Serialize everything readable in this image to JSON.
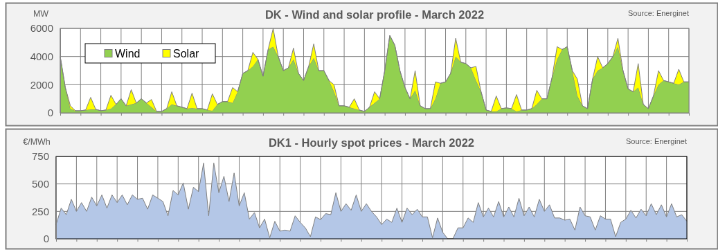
{
  "chart_data": [
    {
      "type": "area",
      "title": "DK - Wind and solar profile - March 2022",
      "ylabel": "MW",
      "annotations": [
        "Source: Energinet"
      ],
      "stacked": true,
      "grid": true,
      "legend": "top left",
      "ylim": [
        0,
        6000
      ],
      "yticks": [
        0,
        2000,
        4000,
        6000
      ],
      "categories": [
        null,
        null,
        null,
        null,
        null,
        null,
        null,
        null,
        null,
        null,
        null,
        null,
        null,
        null,
        null,
        null,
        null,
        null,
        null,
        null,
        null,
        null,
        null,
        null,
        null,
        null,
        null,
        null,
        null,
        null,
        null,
        null,
        null,
        null,
        null,
        null,
        null,
        null,
        null,
        null,
        null,
        null,
        null,
        null,
        null,
        null,
        null,
        null,
        null,
        null,
        null,
        null,
        null,
        null,
        null,
        null,
        null,
        null,
        null,
        null,
        null,
        null,
        null,
        null,
        null,
        null,
        null,
        null,
        null,
        null,
        null,
        null,
        null,
        null,
        null,
        null,
        null,
        null,
        null,
        null,
        null,
        null,
        null,
        null,
        null,
        null,
        null,
        null,
        null,
        null,
        null,
        null,
        null,
        null,
        null,
        null,
        null,
        null,
        null,
        null,
        null,
        null,
        null,
        null,
        null,
        null,
        null,
        null,
        null,
        null,
        null,
        null,
        null,
        null,
        null,
        null,
        null,
        null,
        null,
        null,
        null,
        null,
        null,
        null,
        null
      ],
      "series": [
        {
          "name": "Wind",
          "color": "#92d050",
          "values": [
            4000,
            1800,
            300,
            150,
            150,
            200,
            250,
            250,
            150,
            200,
            300,
            600,
            1000,
            500,
            600,
            700,
            1000,
            700,
            400,
            100,
            100,
            300,
            600,
            500,
            400,
            300,
            350,
            300,
            300,
            200,
            150,
            600,
            800,
            800,
            700,
            1500,
            2800,
            3000,
            3300,
            3800,
            2600,
            4500,
            4700,
            4000,
            3000,
            3200,
            3800,
            2800,
            2300,
            3300,
            3900,
            3000,
            3000,
            2300,
            1500,
            500,
            500,
            400,
            300,
            200,
            100,
            400,
            700,
            1000,
            3000,
            5500,
            4800,
            3000,
            1800,
            1000,
            1600,
            500,
            300,
            300,
            1000,
            2100,
            2200,
            2800,
            4000,
            3600,
            3500,
            3200,
            2300,
            1500,
            200,
            100,
            100,
            300,
            350,
            300,
            100,
            200,
            200,
            300,
            600,
            1000,
            1000,
            2500,
            3800,
            4500,
            4700,
            3000,
            1200,
            500,
            300,
            2400,
            3000,
            3200,
            3500,
            4000,
            4700,
            3000,
            1700,
            1500,
            1800,
            600,
            300,
            1200,
            2000,
            2300,
            2200,
            2100,
            2000,
            2200,
            2200
          ]
        },
        {
          "name": "Solar",
          "color": "#ffff00",
          "values": [
            0,
            0,
            200,
            0,
            0,
            0,
            850,
            0,
            0,
            0,
            950,
            0,
            0,
            0,
            1050,
            0,
            0,
            0,
            550,
            0,
            0,
            0,
            900,
            0,
            0,
            0,
            1050,
            0,
            0,
            0,
            1200,
            0,
            0,
            0,
            1100,
            0,
            0,
            0,
            1000,
            0,
            0,
            0,
            1300,
            0,
            0,
            0,
            800,
            0,
            0,
            0,
            1000,
            0,
            0,
            0,
            500,
            0,
            0,
            0,
            700,
            0,
            0,
            0,
            800,
            0,
            0,
            0,
            0,
            0,
            0,
            0,
            1400,
            0,
            0,
            0,
            1200,
            0,
            0,
            0,
            1300,
            0,
            0,
            0,
            1000,
            0,
            0,
            0,
            1100,
            0,
            0,
            0,
            1200,
            0,
            0,
            0,
            1000,
            0,
            0,
            0,
            900,
            0,
            0,
            0,
            1200,
            0,
            0,
            0,
            1000,
            0,
            0,
            0,
            600,
            0,
            0,
            0,
            1700,
            0,
            0,
            0,
            1000,
            0,
            0,
            0,
            1100,
            0,
            0
          ]
        }
      ]
    },
    {
      "type": "area",
      "title": "DK1 - Hourly spot prices - March 2022",
      "ylabel": "€/MWh",
      "annotations": [
        "Source: Energinet"
      ],
      "grid": true,
      "ylim": [
        0,
        750
      ],
      "yticks": [
        0,
        250,
        500,
        750
      ],
      "categories": [
        null,
        null,
        null,
        null,
        null,
        null,
        null,
        null,
        null,
        null,
        null,
        null,
        null,
        null,
        null,
        null,
        null,
        null,
        null,
        null,
        null,
        null,
        null,
        null,
        null,
        null,
        null,
        null,
        null,
        null,
        null,
        null,
        null,
        null,
        null,
        null,
        null,
        null,
        null,
        null,
        null,
        null,
        null,
        null,
        null,
        null,
        null,
        null,
        null,
        null,
        null,
        null,
        null,
        null,
        null,
        null,
        null,
        null,
        null,
        null,
        null,
        null,
        null,
        null,
        null,
        null,
        null,
        null,
        null,
        null,
        null,
        null,
        null,
        null,
        null,
        null,
        null,
        null,
        null,
        null,
        null,
        null,
        null,
        null,
        null,
        null,
        null,
        null,
        null,
        null,
        null,
        null,
        null,
        null,
        null,
        null,
        null,
        null,
        null,
        null,
        null,
        null,
        null,
        null,
        null,
        null,
        null,
        null,
        null,
        null,
        null,
        null,
        null,
        null,
        null,
        null,
        null,
        null,
        null,
        null,
        null,
        null,
        null,
        null,
        null
      ],
      "series": [
        {
          "color": "#b4c7e7",
          "values": [
            130,
            280,
            220,
            360,
            250,
            330,
            250,
            380,
            300,
            400,
            280,
            400,
            330,
            400,
            310,
            400,
            360,
            370,
            270,
            400,
            370,
            340,
            210,
            440,
            400,
            510,
            270,
            470,
            430,
            690,
            210,
            690,
            420,
            570,
            340,
            600,
            300,
            420,
            180,
            240,
            100,
            180,
            10,
            160,
            70,
            80,
            70,
            210,
            150,
            100,
            20,
            200,
            175,
            230,
            220,
            420,
            250,
            320,
            260,
            400,
            250,
            320,
            250,
            200,
            130,
            180,
            150,
            280,
            150,
            280,
            220,
            270,
            200,
            200,
            10,
            190,
            60,
            0,
            0,
            100,
            100,
            190,
            150,
            330,
            200,
            280,
            200,
            340,
            200,
            290,
            200,
            370,
            210,
            290,
            200,
            360,
            250,
            310,
            190,
            190,
            170,
            180,
            80,
            290,
            210,
            200,
            80,
            210,
            180,
            180,
            20,
            150,
            180,
            260,
            190,
            270,
            210,
            320,
            220,
            310,
            200,
            320,
            200,
            220,
            160
          ]
        }
      ]
    }
  ]
}
